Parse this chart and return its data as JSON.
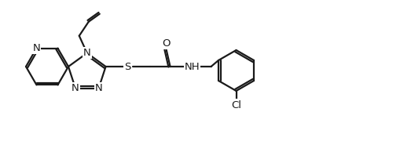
{
  "bg_color": "#ffffff",
  "line_color": "#1a1a1a",
  "line_width": 1.6,
  "font_size": 9.5,
  "fig_width": 5.1,
  "fig_height": 1.8,
  "dpi": 100,
  "xlim": [
    0,
    510
  ],
  "ylim": [
    0,
    180
  ]
}
